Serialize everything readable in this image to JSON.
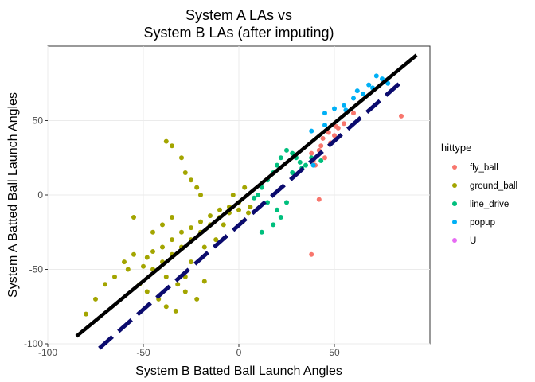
{
  "chart_data": {
    "type": "scatter",
    "title": [
      "System A LAs vs",
      "System B LAs (after imputing)"
    ],
    "xlabel": "System B Batted Ball Launch Angles",
    "ylabel": "System A Batted Ball Launch Angles",
    "xlim": [
      -100,
      100
    ],
    "ylim": [
      -100,
      100
    ],
    "xticks": [
      -100,
      -50,
      0,
      50
    ],
    "yticks": [
      -100,
      -50,
      0,
      50
    ],
    "grid": true,
    "legend_title": "hittype",
    "legend_position": "right",
    "series": [
      {
        "name": "fly_ball",
        "color": "#F8766D",
        "points": [
          [
            40,
            20
          ],
          [
            45,
            25
          ],
          [
            42,
            30
          ],
          [
            48,
            35
          ],
          [
            50,
            40
          ],
          [
            52,
            45
          ],
          [
            38,
            28
          ],
          [
            44,
            38
          ],
          [
            55,
            48
          ],
          [
            60,
            55
          ],
          [
            47,
            42
          ],
          [
            42,
            -3
          ],
          [
            38,
            -40
          ],
          [
            85,
            53
          ],
          [
            39,
            23
          ],
          [
            51,
            46
          ],
          [
            43,
            33
          ]
        ]
      },
      {
        "name": "ground_ball",
        "color": "#A3A500",
        "points": [
          [
            -48,
            -42
          ],
          [
            -45,
            -38
          ],
          [
            -40,
            -35
          ],
          [
            -35,
            -30
          ],
          [
            -30,
            -25
          ],
          [
            -25,
            -22
          ],
          [
            -20,
            -18
          ],
          [
            -15,
            -14
          ],
          [
            -10,
            -10
          ],
          [
            -5,
            -8
          ],
          [
            0,
            -5
          ],
          [
            5,
            -12
          ],
          [
            -38,
            -55
          ],
          [
            -32,
            -60
          ],
          [
            -28,
            -65
          ],
          [
            -22,
            -70
          ],
          [
            -18,
            -58
          ],
          [
            -40,
            -45
          ],
          [
            -45,
            -50
          ],
          [
            -50,
            -48
          ],
          [
            -55,
            -40
          ],
          [
            -52,
            -60
          ],
          [
            -35,
            -40
          ],
          [
            -30,
            -35
          ],
          [
            -25,
            -30
          ],
          [
            -20,
            -25
          ],
          [
            -15,
            -20
          ],
          [
            -10,
            -15
          ],
          [
            -5,
            -12
          ],
          [
            0,
            -10
          ],
          [
            -38,
            36
          ],
          [
            -35,
            33
          ],
          [
            -30,
            25
          ],
          [
            -28,
            15
          ],
          [
            -25,
            10
          ],
          [
            -22,
            5
          ],
          [
            -20,
            0
          ],
          [
            -55,
            -15
          ],
          [
            -60,
            -45
          ],
          [
            -65,
            -55
          ],
          [
            -70,
            -60
          ],
          [
            -75,
            -70
          ],
          [
            -80,
            -80
          ],
          [
            -42,
            -70
          ],
          [
            -38,
            -75
          ],
          [
            -33,
            -78
          ],
          [
            -28,
            -55
          ],
          [
            -12,
            -30
          ],
          [
            -8,
            -20
          ],
          [
            2,
            -18
          ],
          [
            6,
            -8
          ],
          [
            -3,
            0
          ],
          [
            3,
            5
          ],
          [
            -45,
            -25
          ],
          [
            -40,
            -20
          ],
          [
            -35,
            -15
          ],
          [
            -58,
            -50
          ],
          [
            -48,
            -65
          ],
          [
            -25,
            -45
          ],
          [
            -18,
            -35
          ]
        ]
      },
      {
        "name": "line_drive",
        "color": "#00BF7D",
        "points": [
          [
            10,
            0
          ],
          [
            12,
            5
          ],
          [
            15,
            10
          ],
          [
            18,
            15
          ],
          [
            20,
            20
          ],
          [
            22,
            25
          ],
          [
            25,
            30
          ],
          [
            28,
            28
          ],
          [
            30,
            25
          ],
          [
            32,
            22
          ],
          [
            35,
            20
          ],
          [
            20,
            -10
          ],
          [
            18,
            -20
          ],
          [
            22,
            -15
          ],
          [
            25,
            -5
          ],
          [
            15,
            -5
          ],
          [
            12,
            -25
          ],
          [
            28,
            15
          ],
          [
            38,
            25
          ],
          [
            43,
            23
          ],
          [
            33,
            18
          ],
          [
            8,
            -2
          ]
        ]
      },
      {
        "name": "popup",
        "color": "#00B0F6",
        "points": [
          [
            45,
            55
          ],
          [
            50,
            58
          ],
          [
            55,
            60
          ],
          [
            60,
            65
          ],
          [
            65,
            68
          ],
          [
            70,
            72
          ],
          [
            75,
            78
          ],
          [
            78,
            75
          ],
          [
            72,
            80
          ],
          [
            68,
            74
          ],
          [
            62,
            70
          ],
          [
            38,
            43
          ],
          [
            39,
            20
          ],
          [
            45,
            47
          ],
          [
            56,
            57
          ]
        ]
      },
      {
        "name": "U",
        "color": "#E76BF3",
        "points": []
      }
    ],
    "lines": [
      {
        "role": "identity",
        "style": "solid",
        "color": "#000000",
        "x": [
          -85,
          93
        ],
        "y": [
          -95,
          94
        ]
      },
      {
        "role": "fit",
        "style": "dashed",
        "color": "#0B0B6E",
        "x": [
          -73,
          85
        ],
        "y": [
          -103,
          76
        ]
      }
    ]
  }
}
